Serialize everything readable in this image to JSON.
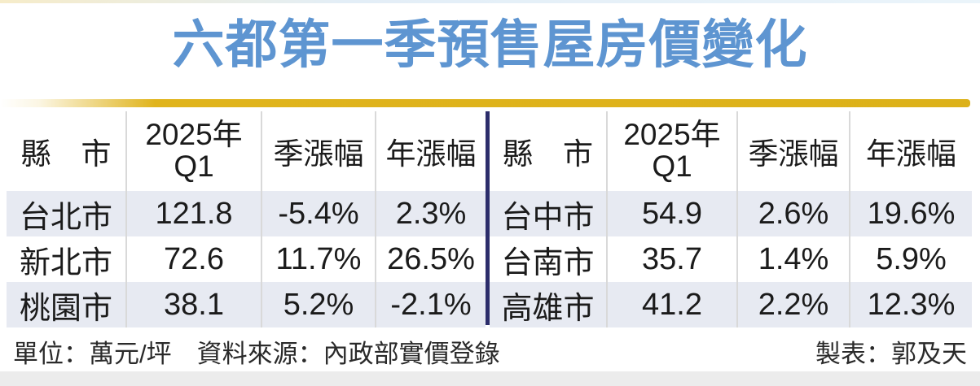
{
  "title": "六都第一季預售屋房價變化",
  "accent_colors": {
    "title_blue": "#5e95d1",
    "rule_gold": "#e0b41c",
    "divider_navy": "#2c2d6b",
    "row_shade": "#e7eaf2"
  },
  "tables": [
    {
      "headers": {
        "city": "縣　市",
        "q1_top": "2025年",
        "q1_bottom": "Q1",
        "qoq": "季漲幅",
        "yoy": "年漲幅"
      },
      "rows": [
        {
          "city": "台北市",
          "q1": "121.8",
          "qoq": "-5.4%",
          "yoy": "2.3%"
        },
        {
          "city": "新北市",
          "q1": "72.6",
          "qoq": "11.7%",
          "yoy": "26.5%"
        },
        {
          "city": "桃園市",
          "q1": "38.1",
          "qoq": "5.2%",
          "yoy": "-2.1%"
        }
      ]
    },
    {
      "headers": {
        "city": "縣　市",
        "q1_top": "2025年",
        "q1_bottom": "Q1",
        "qoq": "季漲幅",
        "yoy": "年漲幅"
      },
      "rows": [
        {
          "city": "台中市",
          "q1": "54.9",
          "qoq": "2.6%",
          "yoy": "19.6%"
        },
        {
          "city": "台南市",
          "q1": "35.7",
          "qoq": "1.4%",
          "yoy": "5.9%"
        },
        {
          "city": "高雄市",
          "q1": "41.2",
          "qoq": "2.2%",
          "yoy": "12.3%"
        }
      ]
    }
  ],
  "footer": {
    "left": "單位：萬元/坪　資料來源：內政部實價登錄",
    "right": "製表：郭及天"
  },
  "chart_data": {
    "type": "table",
    "title": "六都第一季預售屋房價變化",
    "unit": "萬元/坪",
    "source": "內政部實價登錄",
    "credit": "郭及天",
    "columns": [
      "縣市",
      "2025年Q1",
      "季漲幅",
      "年漲幅"
    ],
    "rows": [
      [
        "台北市",
        121.8,
        "-5.4%",
        "2.3%"
      ],
      [
        "新北市",
        72.6,
        "11.7%",
        "26.5%"
      ],
      [
        "桃園市",
        38.1,
        "5.2%",
        "-2.1%"
      ],
      [
        "台中市",
        54.9,
        "2.6%",
        "19.6%"
      ],
      [
        "台南市",
        35.7,
        "1.4%",
        "5.9%"
      ],
      [
        "高雄市",
        41.2,
        "2.2%",
        "12.3%"
      ]
    ]
  }
}
